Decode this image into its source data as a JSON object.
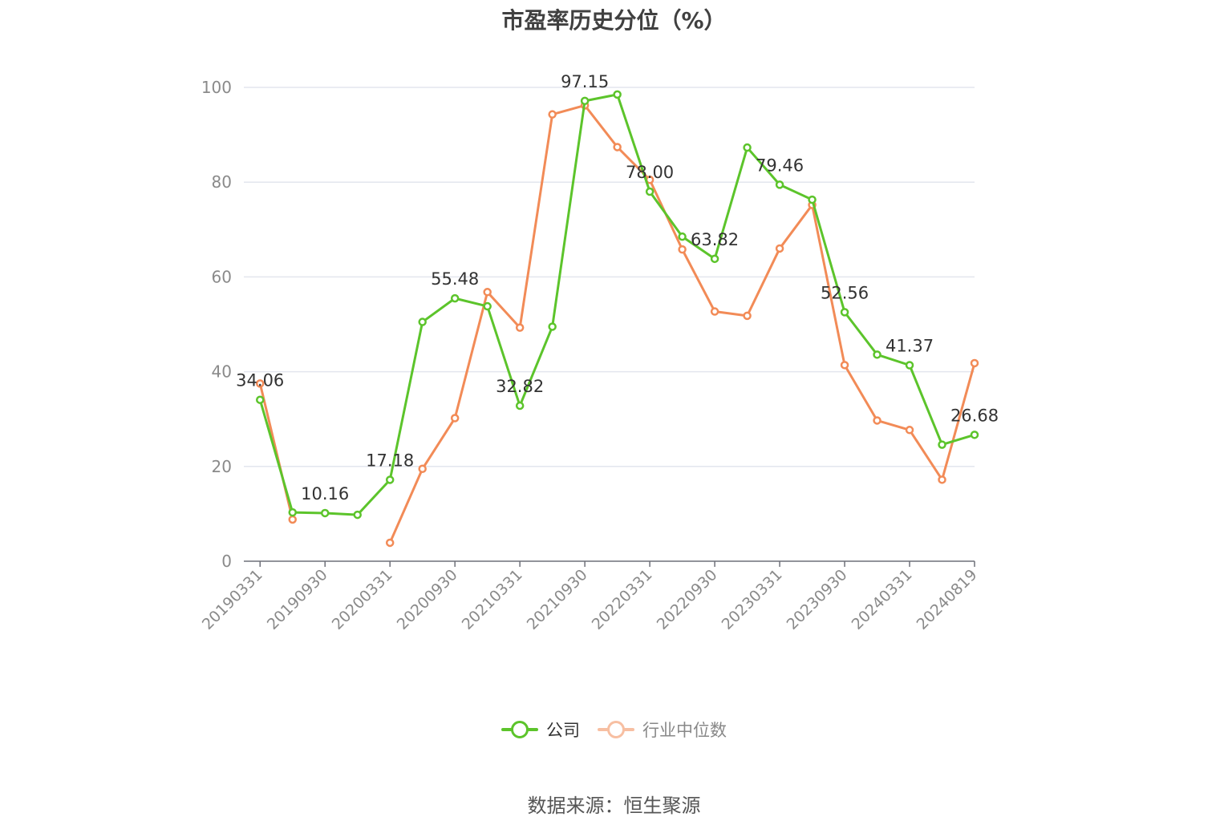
{
  "title": "市盈率历史分位（%）",
  "source": "数据来源：恒生聚源",
  "colors": {
    "company": "#5cc42b",
    "industry": "#f28b57",
    "grid": "#e3e6ee",
    "axis": "#6e7079"
  },
  "legend": [
    {
      "label": "公司",
      "color": "#5cc42b"
    },
    {
      "label": "行业中位数",
      "color": "#f28b57"
    }
  ],
  "chart_data": {
    "type": "line",
    "title": "市盈率历史分位（%）",
    "ylim": [
      0,
      100
    ],
    "yticks": [
      0,
      20,
      40,
      60,
      80,
      100
    ],
    "x_tick_labels": [
      "20190331",
      "20190930",
      "20200331",
      "20200930",
      "20210331",
      "20210930",
      "20220331",
      "20220930",
      "20230331",
      "20230930",
      "20240331",
      "20240819"
    ],
    "x": [
      "20190331",
      "20190630",
      "20190930",
      "20191231",
      "20200331",
      "20200630",
      "20200930",
      "20201231",
      "20210331",
      "20210630",
      "20210930",
      "20211231",
      "20220331",
      "20220630",
      "20220930",
      "20221231",
      "20230331",
      "20230630",
      "20230930",
      "20231231",
      "20240331",
      "20240630",
      "20240819"
    ],
    "grid": true,
    "legend_position": "bottom-center",
    "series": [
      {
        "name": "公司",
        "color": "#5cc42b",
        "values": [
          34.06,
          10.3,
          10.16,
          9.8,
          17.18,
          50.5,
          55.48,
          53.8,
          32.82,
          49.5,
          97.15,
          98.5,
          78.0,
          68.5,
          63.82,
          87.3,
          79.46,
          76.3,
          52.56,
          43.6,
          41.37,
          24.6,
          26.68
        ],
        "labels": [
          34.06,
          null,
          10.16,
          null,
          17.18,
          null,
          55.48,
          null,
          32.82,
          null,
          97.15,
          null,
          78.0,
          null,
          63.82,
          null,
          79.46,
          null,
          52.56,
          null,
          41.37,
          null,
          26.68
        ]
      },
      {
        "name": "行业中位数",
        "color": "#f28b57",
        "values": [
          37.5,
          8.8,
          null,
          null,
          3.9,
          19.5,
          30.2,
          56.8,
          49.3,
          94.3,
          96.2,
          87.4,
          80.5,
          65.8,
          52.7,
          51.8,
          66.0,
          75.2,
          41.4,
          29.7,
          27.7,
          17.2,
          41.8
        ]
      }
    ]
  }
}
